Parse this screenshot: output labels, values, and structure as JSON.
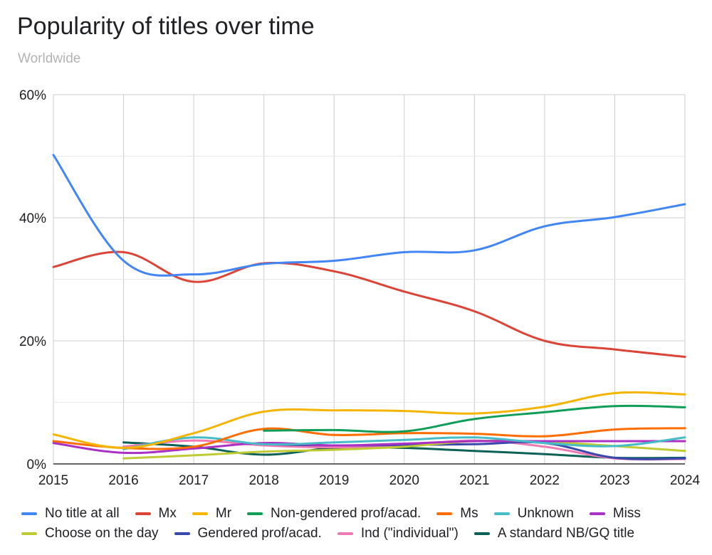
{
  "chart_data": {
    "type": "line",
    "title": "Popularity of titles over time",
    "subtitle": "Worldwide",
    "xlabel": "",
    "ylabel": "",
    "x": [
      2015,
      2016,
      2017,
      2018,
      2019,
      2020,
      2021,
      2022,
      2023,
      2024
    ],
    "x_tick_labels": [
      "2015",
      "2016",
      "2017",
      "2018",
      "2019",
      "2020",
      "2021",
      "2022",
      "2023",
      "2024"
    ],
    "ylim": [
      0,
      60
    ],
    "y_ticks": [
      0,
      20,
      40,
      60
    ],
    "y_tick_labels": [
      "0%",
      "20%",
      "40%",
      "60%"
    ],
    "grid": true,
    "legend_position": "bottom",
    "series": [
      {
        "name": "No title at all",
        "color": "#4285f4",
        "values": [
          50.2,
          33.0,
          30.8,
          32.5,
          33.0,
          34.4,
          34.7,
          38.6,
          40.1,
          42.2
        ]
      },
      {
        "name": "Mx",
        "color": "#db4437",
        "values": [
          32.0,
          34.4,
          29.6,
          32.6,
          31.3,
          28.0,
          24.8,
          20.0,
          18.6,
          17.4
        ]
      },
      {
        "name": "Mr",
        "color": "#f4b400",
        "values": [
          4.8,
          2.6,
          5.0,
          8.5,
          8.7,
          8.6,
          8.2,
          9.3,
          11.5,
          11.3
        ]
      },
      {
        "name": "Non-gendered prof/acad.",
        "color": "#0f9d58",
        "values": [
          null,
          null,
          null,
          5.4,
          5.5,
          5.3,
          7.3,
          8.4,
          9.4,
          9.2
        ]
      },
      {
        "name": "Ms",
        "color": "#ff6d01",
        "values": [
          3.7,
          2.6,
          2.8,
          5.7,
          4.7,
          5.0,
          4.9,
          4.5,
          5.6,
          5.8
        ]
      },
      {
        "name": "Unknown",
        "color": "#46bdc6",
        "values": [
          null,
          2.4,
          4.3,
          3.2,
          3.5,
          3.9,
          4.3,
          3.4,
          2.9,
          4.3
        ]
      },
      {
        "name": "Miss",
        "color": "#ab30c4",
        "values": [
          3.4,
          1.8,
          2.5,
          3.4,
          3.0,
          3.3,
          3.7,
          3.7,
          3.7,
          3.7
        ]
      },
      {
        "name": "Choose on the day",
        "color": "#c0ca33",
        "values": [
          null,
          0.9,
          1.4,
          2.0,
          2.3,
          2.8,
          3.7,
          3.6,
          2.9,
          2.1
        ]
      },
      {
        "name": "Gendered prof/acad.",
        "color": "#3949ab",
        "values": [
          null,
          null,
          null,
          3.2,
          3.0,
          3.1,
          3.2,
          3.4,
          1.0,
          0.9
        ]
      },
      {
        "name": "Ind (\"individual\")",
        "color": "#f07ab3",
        "values": [
          null,
          2.8,
          3.8,
          3.0,
          2.7,
          3.0,
          3.8,
          2.8,
          0.9,
          0.8
        ]
      },
      {
        "name": "A standard NB/GQ title",
        "color": "#0b6156",
        "values": [
          null,
          3.5,
          2.8,
          1.5,
          2.6,
          2.6,
          2.1,
          1.6,
          1.0,
          1.0
        ]
      }
    ]
  }
}
